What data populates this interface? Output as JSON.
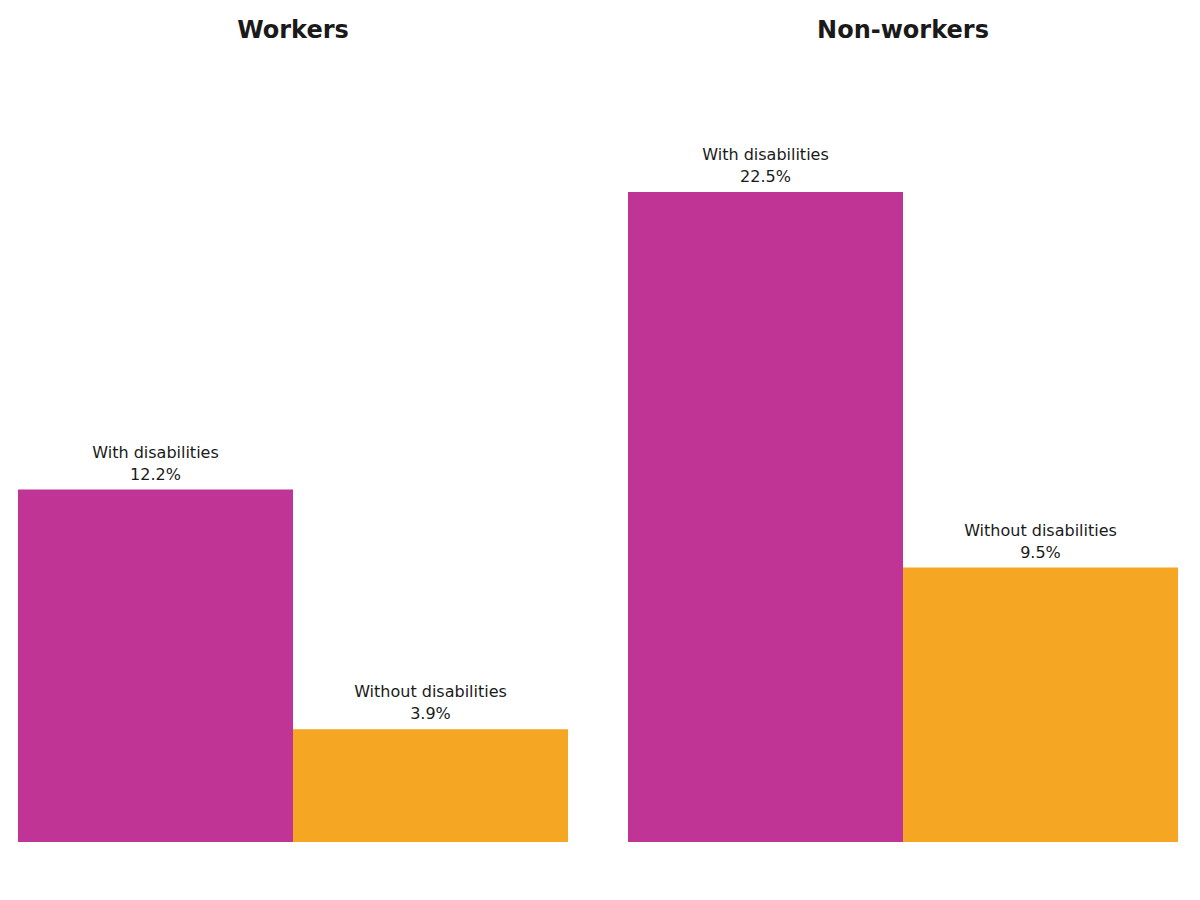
{
  "chart_data": [
    {
      "type": "bar",
      "title": "Workers",
      "categories": [
        "With disabilities",
        "Without disabilities"
      ],
      "values": [
        12.2,
        3.9
      ],
      "value_labels": [
        "12.2%",
        "3.9%"
      ],
      "data_labels": true,
      "colors": [
        "#BF3494",
        "#F5A623"
      ],
      "ylim": [
        0,
        27
      ],
      "grid": false,
      "tick_labels": false
    },
    {
      "type": "bar",
      "title": "Non-workers",
      "categories": [
        "With disabilities",
        "Without disabilities"
      ],
      "values": [
        22.5,
        9.5
      ],
      "value_labels": [
        "22.5%",
        "9.5%"
      ],
      "data_labels": true,
      "colors": [
        "#BF3494",
        "#F5A623"
      ],
      "ylim": [
        0,
        27
      ],
      "grid": false,
      "tick_labels": false
    }
  ]
}
